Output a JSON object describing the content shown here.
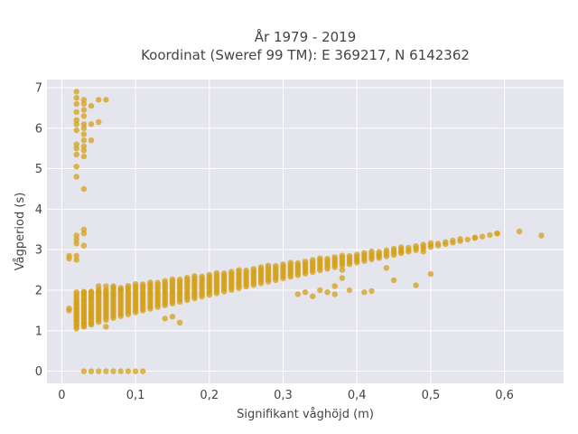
{
  "chart_data": {
    "type": "scatter",
    "title_line1": "År 1979 - 2019",
    "title_line2": "Koordinat (Sweref 99 TM): E 369217, N 6142362",
    "xlabel": "Signifikant våghöjd (m)",
    "ylabel": "Vågperiod (s)",
    "xlim": [
      -0.02,
      0.68
    ],
    "ylim": [
      -0.3,
      7.2
    ],
    "x_ticks": [
      0,
      0.1,
      0.2,
      0.3,
      0.4,
      0.5,
      0.6
    ],
    "x_tick_labels": [
      "0",
      "0,1",
      "0,2",
      "0,3",
      "0,4",
      "0,5",
      "0,6"
    ],
    "y_ticks": [
      0,
      1,
      2,
      3,
      4,
      5,
      6,
      7
    ],
    "y_tick_labels": [
      "0",
      "1",
      "2",
      "3",
      "4",
      "5",
      "6",
      "7"
    ],
    "grid": true,
    "colors": {
      "plot_bg": "#e5e5ee",
      "grid": "#ffffff",
      "marker": "#d4a017"
    },
    "points": [
      [
        0.01,
        2.85
      ],
      [
        0.01,
        2.78
      ],
      [
        0.01,
        1.55
      ],
      [
        0.01,
        1.5
      ],
      [
        0.02,
        6.9
      ],
      [
        0.02,
        6.75
      ],
      [
        0.02,
        6.6
      ],
      [
        0.02,
        6.4
      ],
      [
        0.02,
        6.2
      ],
      [
        0.02,
        6.1
      ],
      [
        0.02,
        5.95
      ],
      [
        0.02,
        5.6
      ],
      [
        0.02,
        5.5
      ],
      [
        0.02,
        5.35
      ],
      [
        0.02,
        5.05
      ],
      [
        0.02,
        4.8
      ],
      [
        0.02,
        3.35
      ],
      [
        0.02,
        3.25
      ],
      [
        0.02,
        3.15
      ],
      [
        0.02,
        2.85
      ],
      [
        0.02,
        2.75
      ],
      [
        0.02,
        1.65
      ],
      [
        0.02,
        1.55
      ],
      [
        0.02,
        1.45
      ],
      [
        0.02,
        1.35
      ],
      [
        0.02,
        1.25
      ],
      [
        0.02,
        1.15
      ],
      [
        0.03,
        6.7
      ],
      [
        0.03,
        6.6
      ],
      [
        0.03,
        6.45
      ],
      [
        0.03,
        6.3
      ],
      [
        0.03,
        6.1
      ],
      [
        0.03,
        6.0
      ],
      [
        0.03,
        5.85
      ],
      [
        0.03,
        5.7
      ],
      [
        0.03,
        5.55
      ],
      [
        0.03,
        5.45
      ],
      [
        0.03,
        5.3
      ],
      [
        0.03,
        4.5
      ],
      [
        0.03,
        3.5
      ],
      [
        0.03,
        3.4
      ],
      [
        0.03,
        3.1
      ],
      [
        0.03,
        1.95
      ],
      [
        0.03,
        1.75
      ],
      [
        0.03,
        1.6
      ],
      [
        0.03,
        1.5
      ],
      [
        0.03,
        1.4
      ],
      [
        0.03,
        1.3
      ],
      [
        0.03,
        1.2
      ],
      [
        0.03,
        1.1
      ],
      [
        0.03,
        0.0
      ],
      [
        0.04,
        6.55
      ],
      [
        0.04,
        6.1
      ],
      [
        0.04,
        5.7
      ],
      [
        0.04,
        1.95
      ],
      [
        0.04,
        1.8
      ],
      [
        0.04,
        1.6
      ],
      [
        0.04,
        1.45
      ],
      [
        0.04,
        1.3
      ],
      [
        0.04,
        1.15
      ],
      [
        0.04,
        0.0
      ],
      [
        0.05,
        6.7
      ],
      [
        0.05,
        6.15
      ],
      [
        0.05,
        2.1
      ],
      [
        0.05,
        1.95
      ],
      [
        0.05,
        0.0
      ],
      [
        0.06,
        6.7
      ],
      [
        0.06,
        2.1
      ],
      [
        0.06,
        1.9
      ],
      [
        0.06,
        1.1
      ],
      [
        0.06,
        0.0
      ],
      [
        0.07,
        2.1
      ],
      [
        0.07,
        1.9
      ],
      [
        0.07,
        0.0
      ],
      [
        0.08,
        2.0
      ],
      [
        0.08,
        0.0
      ],
      [
        0.09,
        0.0
      ],
      [
        0.1,
        0.0
      ],
      [
        0.11,
        0.0
      ],
      [
        0.16,
        1.2
      ],
      [
        0.15,
        1.35
      ],
      [
        0.14,
        1.3
      ],
      [
        0.32,
        1.9
      ],
      [
        0.33,
        1.95
      ],
      [
        0.34,
        1.85
      ],
      [
        0.35,
        2.0
      ],
      [
        0.36,
        1.95
      ],
      [
        0.37,
        2.1
      ],
      [
        0.37,
        1.9
      ],
      [
        0.38,
        2.3
      ],
      [
        0.38,
        2.5
      ],
      [
        0.39,
        2.0
      ],
      [
        0.41,
        1.95
      ],
      [
        0.42,
        1.98
      ],
      [
        0.43,
        2.85
      ],
      [
        0.44,
        2.55
      ],
      [
        0.45,
        2.25
      ],
      [
        0.46,
        2.95
      ],
      [
        0.48,
        2.12
      ],
      [
        0.49,
        2.95
      ],
      [
        0.5,
        2.4
      ],
      [
        0.56,
        3.3
      ],
      [
        0.59,
        3.4
      ],
      [
        0.62,
        3.45
      ],
      [
        0.65,
        3.35
      ]
    ],
    "band": {
      "x_start": 0.02,
      "x_end": 0.59,
      "x_step": 0.01,
      "lower_start": 1.05,
      "lower_end": 3.4,
      "upper_start": 1.95,
      "upper_end": 3.4
    }
  }
}
